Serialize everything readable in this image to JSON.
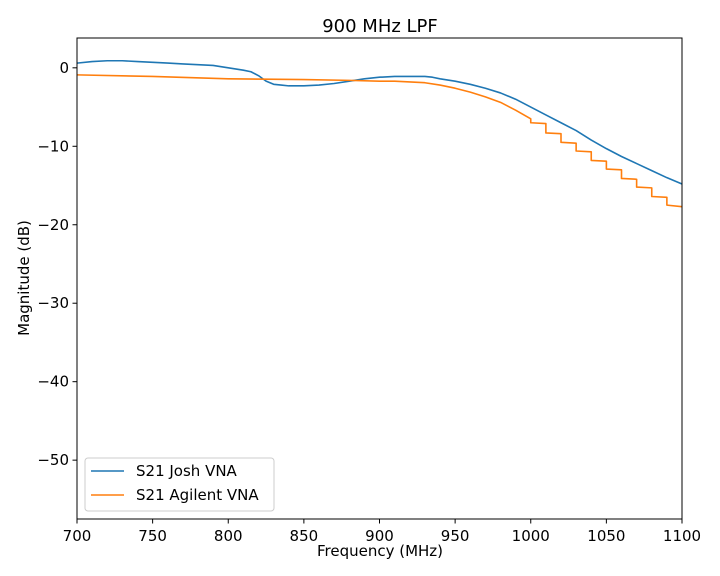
{
  "chart_data": {
    "type": "line",
    "title": "900 MHz LPF",
    "xlabel": "Frequency (MHz)",
    "ylabel": "Magnitude (dB)",
    "xlim": [
      700,
      1100
    ],
    "ylim": [
      -57.5,
      3.8
    ],
    "xticks": [
      700,
      750,
      800,
      850,
      900,
      950,
      1000,
      1050,
      1100
    ],
    "yticks": [
      0,
      -10,
      -20,
      -30,
      -40,
      -50
    ],
    "grid": false,
    "legend_position": "lower-left",
    "series": [
      {
        "name": "S21 Josh VNA",
        "color": "#1f77b4",
        "x": [
          700,
          710,
          720,
          730,
          740,
          750,
          760,
          770,
          780,
          790,
          800,
          810,
          815,
          820,
          825,
          830,
          835,
          840,
          850,
          860,
          870,
          880,
          890,
          900,
          910,
          920,
          930,
          935,
          940,
          950,
          960,
          970,
          980,
          990,
          1000,
          1010,
          1020,
          1030,
          1040,
          1050,
          1060,
          1070,
          1080,
          1090,
          1100
        ],
        "y": [
          0.6,
          0.8,
          0.9,
          0.9,
          0.8,
          0.7,
          0.6,
          0.5,
          0.4,
          0.3,
          0.0,
          -0.3,
          -0.5,
          -1.0,
          -1.7,
          -2.1,
          -2.2,
          -2.3,
          -2.3,
          -2.2,
          -2.0,
          -1.7,
          -1.4,
          -1.2,
          -1.1,
          -1.1,
          -1.1,
          -1.2,
          -1.4,
          -1.7,
          -2.1,
          -2.6,
          -3.2,
          -4.0,
          -5.0,
          -6.0,
          -7.0,
          -8.0,
          -9.2,
          -10.3,
          -11.3,
          -12.2,
          -13.1,
          -14.0,
          -14.8
        ]
      },
      {
        "name": "S21 Agilent VNA",
        "color": "#ff7f0e",
        "x": [
          700,
          750,
          800,
          850,
          880,
          900,
          910,
          920,
          930,
          940,
          950,
          960,
          970,
          980,
          990,
          1000,
          1000,
          1010,
          1010,
          1020,
          1020,
          1030,
          1030,
          1040,
          1040,
          1050,
          1050,
          1060,
          1060,
          1070,
          1070,
          1080,
          1080,
          1090,
          1090,
          1100
        ],
        "y": [
          -0.9,
          -1.1,
          -1.4,
          -1.5,
          -1.6,
          -1.7,
          -1.7,
          -1.8,
          -1.9,
          -2.2,
          -2.6,
          -3.1,
          -3.7,
          -4.4,
          -5.4,
          -6.5,
          -7.0,
          -7.1,
          -8.3,
          -8.4,
          -9.5,
          -9.6,
          -10.6,
          -10.7,
          -11.8,
          -11.9,
          -12.9,
          -13.0,
          -14.1,
          -14.2,
          -15.2,
          -15.3,
          -16.4,
          -16.5,
          -17.5,
          -17.7
        ]
      }
    ]
  }
}
